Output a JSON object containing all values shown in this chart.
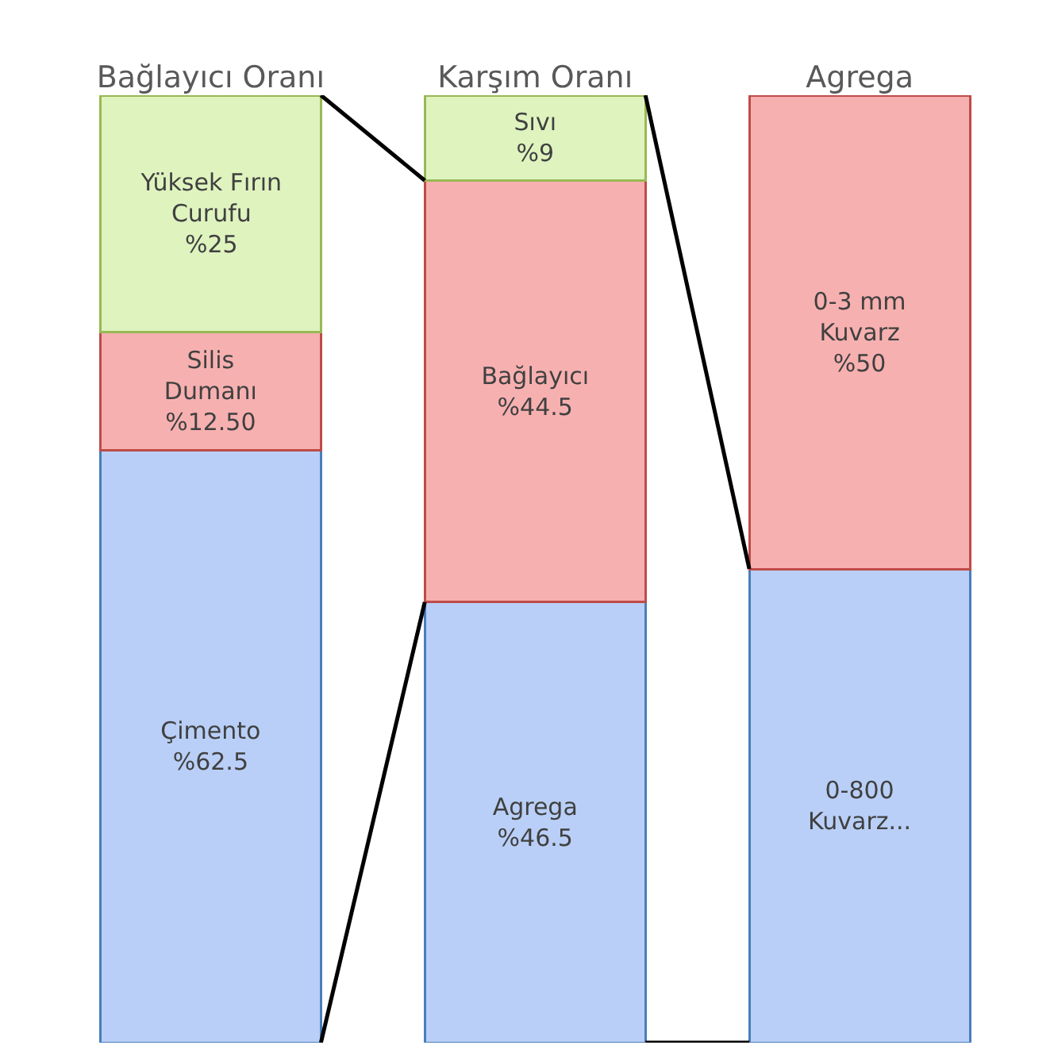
{
  "chart_data": {
    "type": "bar",
    "stacked": true,
    "categories": [
      "Bağlayıcı Oranı",
      "Karşım Oranı",
      "Agrega"
    ],
    "series": [
      {
        "color": "#b9cff7",
        "values": [
          62.5,
          46.5,
          50
        ],
        "value_labels": [
          "Çimento\n%62.5",
          "Agrega\n%46.5",
          "0-800\nKuvarz..."
        ]
      },
      {
        "color": "#f7b0b0",
        "values": [
          12.5,
          44.5,
          50
        ],
        "value_labels": [
          "Silis\nDumanı\n%12.50",
          "Bağlayıcı\n%44.5",
          "0-3 mm\nKuvarz\n%50"
        ]
      },
      {
        "color": "#dff3bf",
        "values": [
          25,
          9,
          null
        ],
        "value_labels": [
          "Yüksek Fırın\nCurufu\n%25",
          "Sıvı\n%9",
          null
        ]
      }
    ],
    "legend": false
  }
}
